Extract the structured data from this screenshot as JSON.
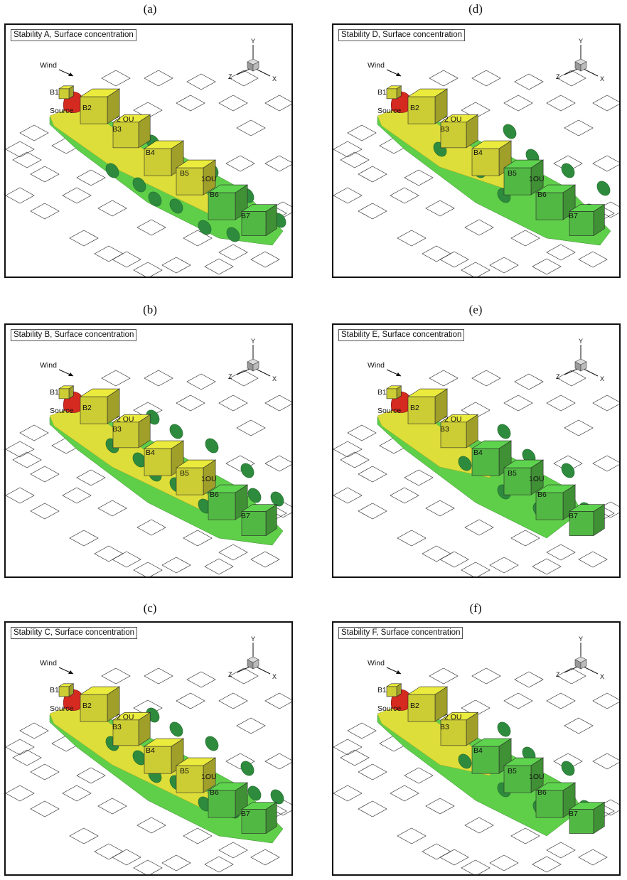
{
  "panels": [
    {
      "letter": "(a)",
      "title": "Stability A, Surface concentration",
      "stability": "A",
      "lower_ou_label": "1OU"
    },
    {
      "letter": "(b)",
      "title": "Stability B, Surface concentration",
      "stability": "B",
      "lower_ou_label": "1OU"
    },
    {
      "letter": "(c)",
      "title": "Stability C, Surface concentration",
      "stability": "C",
      "lower_ou_label": "1OU"
    },
    {
      "letter": "(d)",
      "title": "Stability D, Surface concentration",
      "stability": "D",
      "lower_ou_label": "1OU"
    },
    {
      "letter": "(e)",
      "title": "Stability E, Surface concentration",
      "stability": "E",
      "lower_ou_label": "1OU"
    },
    {
      "letter": "(f)",
      "title": "Stability F, Surface concentration",
      "stability": "F",
      "lower_ou_label": "1OU"
    }
  ],
  "labels": {
    "wind": "Wind",
    "source": "Source",
    "buildings": [
      "B1",
      "B2",
      "B3",
      "B4",
      "B5",
      "B6",
      "B7"
    ],
    "upper_ou": "2 OU"
  },
  "axes": {
    "x": "X",
    "y": "Y",
    "z": "Z"
  },
  "colors": {
    "source_red": "#d42a1f",
    "plume_yellow": "#dede3a",
    "plume_green": "#5fcf4a",
    "patch_dark_green": "#2e8b3d",
    "building_yellow": "#cccc35",
    "building_green": "#52b844"
  }
}
